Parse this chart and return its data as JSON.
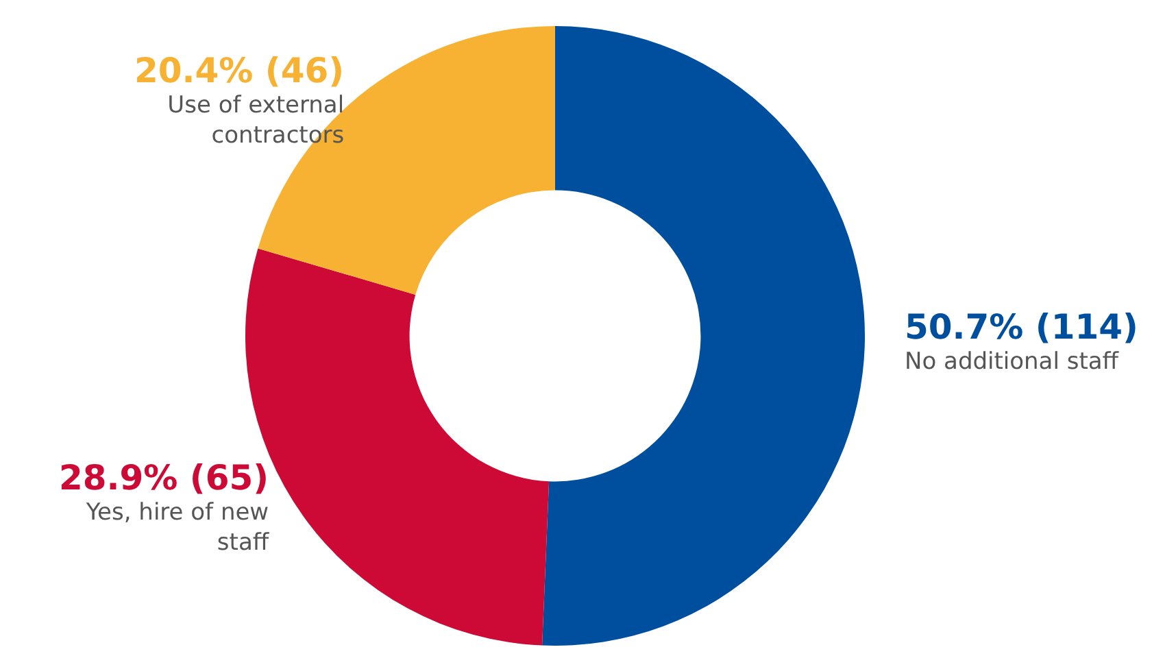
{
  "chart_data": {
    "type": "donut",
    "categories": [
      "No additional staff",
      "Yes, hire of new staff",
      "Use of external contractors"
    ],
    "values": [
      114,
      65,
      46
    ],
    "colors": [
      "#004f9f",
      "#cc0a35",
      "#f7b233"
    ],
    "value_labels": [
      "50.7% (114)",
      "28.9% (65)",
      "20.4% (46)"
    ],
    "legend": false
  }
}
